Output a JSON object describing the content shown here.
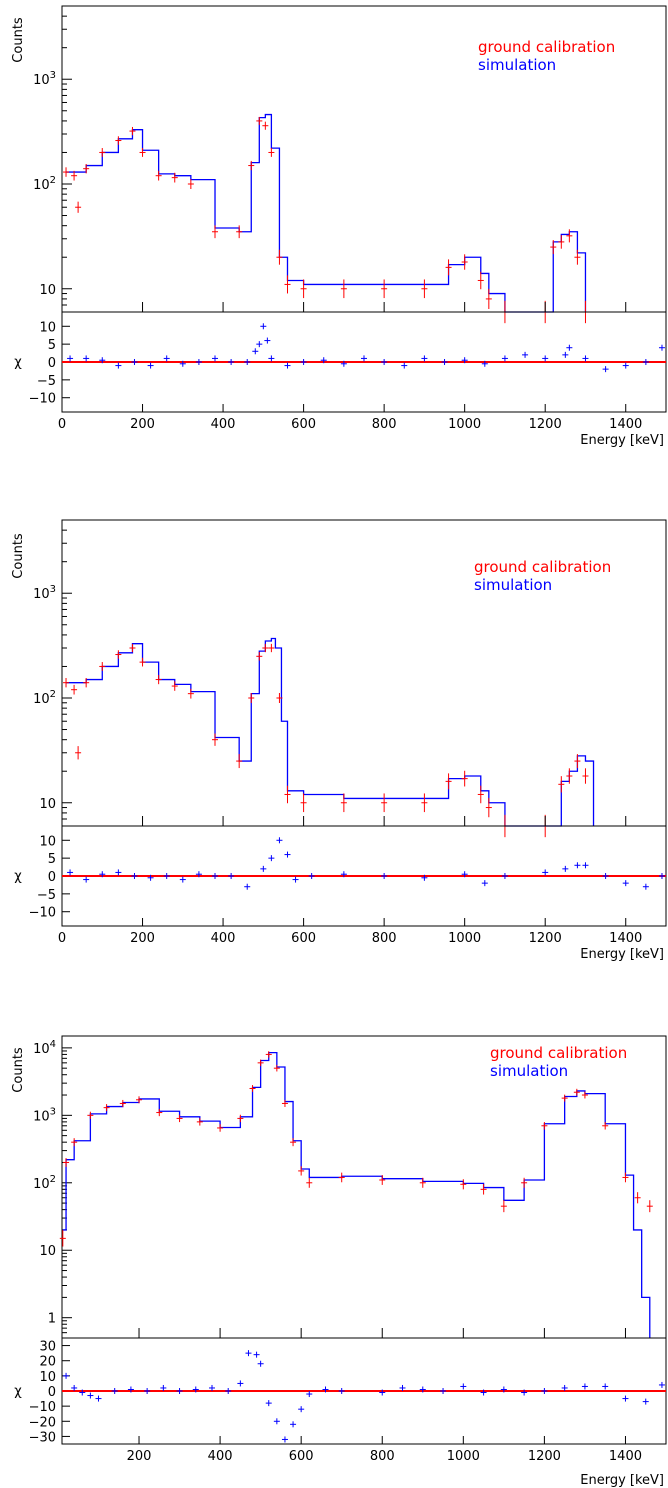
{
  "colors": {
    "data": "#ff0000",
    "sim": "#0000ff",
    "zero_line": "#ff0000",
    "axis": "#000000"
  },
  "chart_data": [
    {
      "type": "line",
      "legend": [
        "ground calibration",
        "simulation"
      ],
      "legend_placement": "top-right",
      "ylabel": "Counts",
      "xlabel": "Energy [keV]",
      "yscale": "log",
      "xlim": [
        0,
        1500
      ],
      "ylim": [
        6,
        5000
      ],
      "x_ticks": [
        "0",
        "200",
        "400",
        "600",
        "800",
        "1000",
        "1200",
        "1400"
      ],
      "y_ticks": [
        "10",
        "10^2",
        "10^3"
      ],
      "residual_ylabel": "χ",
      "residual_ylim": [
        -14,
        14
      ],
      "residual_ticks": [
        "10",
        "5",
        "0",
        "−5",
        "−10"
      ],
      "series": [
        {
          "name": "ground calibration",
          "x": [
            10,
            30,
            40,
            60,
            100,
            140,
            175,
            200,
            240,
            280,
            320,
            380,
            440,
            470,
            490,
            505,
            520,
            540,
            560,
            600,
            700,
            800,
            900,
            960,
            1000,
            1040,
            1060,
            1100,
            1200,
            1220,
            1240,
            1260,
            1280,
            1300
          ],
          "y": [
            130,
            120,
            60,
            140,
            200,
            260,
            320,
            200,
            120,
            115,
            100,
            35,
            35,
            150,
            400,
            360,
            200,
            20,
            11,
            10,
            10,
            10,
            10,
            16,
            18,
            12,
            8,
            6,
            6,
            25,
            28,
            32,
            20,
            6
          ]
        },
        {
          "name": "simulation",
          "x": [
            10,
            40,
            60,
            100,
            140,
            175,
            200,
            240,
            280,
            320,
            380,
            440,
            470,
            490,
            505,
            520,
            540,
            560,
            600,
            700,
            800,
            900,
            960,
            1000,
            1040,
            1060,
            1100,
            1200,
            1220,
            1240,
            1260,
            1280,
            1300
          ],
          "y": [
            130,
            130,
            150,
            200,
            270,
            330,
            210,
            125,
            120,
            110,
            38,
            35,
            160,
            430,
            460,
            220,
            20,
            12,
            11,
            11,
            11,
            11,
            17,
            20,
            14,
            9,
            6,
            6,
            28,
            33,
            35,
            22,
            6
          ]
        }
      ],
      "residuals": {
        "x": [
          20,
          60,
          100,
          140,
          180,
          220,
          260,
          300,
          340,
          380,
          420,
          460,
          480,
          490,
          500,
          510,
          520,
          560,
          600,
          650,
          700,
          750,
          800,
          850,
          900,
          950,
          1000,
          1050,
          1100,
          1150,
          1200,
          1250,
          1260,
          1300,
          1350,
          1400,
          1450,
          1490
        ],
        "y": [
          1,
          1,
          0.5,
          -1,
          0,
          -1,
          1,
          -0.5,
          0,
          1,
          0,
          0,
          3,
          5,
          10,
          6,
          1,
          -1,
          0,
          0.5,
          -0.5,
          1,
          0,
          -1,
          1,
          0,
          0.5,
          -0.5,
          1,
          2,
          1,
          2,
          4,
          1,
          -2,
          -1,
          0,
          4
        ]
      }
    },
    {
      "type": "line",
      "legend": [
        "ground calibration",
        "simulation"
      ],
      "legend_placement": "top-right",
      "ylabel": "Counts",
      "xlabel": "Energy [keV]",
      "yscale": "log",
      "xlim": [
        0,
        1500
      ],
      "ylim": [
        6,
        5000
      ],
      "x_ticks": [
        "0",
        "200",
        "400",
        "600",
        "800",
        "1000",
        "1200",
        "1400"
      ],
      "y_ticks": [
        "10",
        "10^2",
        "10^3"
      ],
      "residual_ylabel": "χ",
      "residual_ylim": [
        -14,
        14
      ],
      "residual_ticks": [
        "10",
        "5",
        "0",
        "−5",
        "−10"
      ],
      "series": [
        {
          "name": "ground calibration",
          "x": [
            10,
            30,
            40,
            60,
            100,
            140,
            175,
            200,
            240,
            280,
            320,
            380,
            440,
            470,
            490,
            505,
            520,
            540,
            560,
            600,
            700,
            800,
            900,
            960,
            1000,
            1040,
            1060,
            1100,
            1200,
            1240,
            1260,
            1280,
            1300
          ],
          "y": [
            140,
            120,
            30,
            140,
            200,
            260,
            300,
            220,
            150,
            130,
            110,
            40,
            25,
            100,
            250,
            300,
            300,
            100,
            12,
            10,
            10,
            10,
            10,
            16,
            17,
            12,
            9,
            6,
            6,
            15,
            18,
            25,
            18
          ]
        },
        {
          "name": "simulation",
          "x": [
            10,
            40,
            60,
            100,
            140,
            175,
            200,
            240,
            280,
            320,
            380,
            440,
            470,
            490,
            505,
            520,
            530,
            545,
            560,
            600,
            700,
            800,
            900,
            960,
            1000,
            1040,
            1060,
            1100,
            1200,
            1240,
            1260,
            1280,
            1300,
            1320
          ],
          "y": [
            140,
            140,
            150,
            200,
            270,
            330,
            220,
            150,
            135,
            115,
            42,
            25,
            110,
            280,
            350,
            370,
            300,
            60,
            13,
            12,
            11,
            11,
            11,
            17,
            18,
            13,
            10,
            6,
            6,
            16,
            20,
            28,
            25,
            6
          ]
        }
      ],
      "residuals": {
        "x": [
          20,
          60,
          100,
          140,
          180,
          220,
          260,
          300,
          340,
          380,
          420,
          460,
          500,
          520,
          540,
          560,
          580,
          620,
          700,
          800,
          900,
          1000,
          1050,
          1100,
          1200,
          1250,
          1280,
          1300,
          1350,
          1400,
          1450,
          1490
        ],
        "y": [
          1,
          -1,
          0.5,
          1,
          0,
          -0.5,
          0,
          -1,
          0.5,
          0,
          0,
          -3,
          2,
          5,
          10,
          6,
          -1,
          0,
          0.5,
          0,
          -0.5,
          0.5,
          -2,
          0,
          1,
          2,
          3,
          3,
          0,
          -2,
          -3,
          0
        ]
      }
    },
    {
      "type": "line",
      "legend": [
        "ground calibration",
        "simulation"
      ],
      "legend_placement": "top-right",
      "ylabel": "Counts",
      "xlabel": "Energy [keV]",
      "yscale": "log",
      "xlim": [
        10,
        1500
      ],
      "ylim": [
        0.5,
        15000
      ],
      "x_ticks": [
        "200",
        "400",
        "600",
        "800",
        "1000",
        "1200",
        "1400"
      ],
      "y_ticks": [
        "1",
        "10",
        "10^2",
        "10^3",
        "10^4"
      ],
      "residual_ylabel": "χ",
      "residual_ylim": [
        -35,
        35
      ],
      "residual_ticks": [
        "30",
        "20",
        "10",
        "0",
        "−10",
        "−20",
        "−30"
      ],
      "series": [
        {
          "name": "ground calibration",
          "x": [
            12,
            20,
            40,
            80,
            120,
            160,
            200,
            250,
            300,
            350,
            400,
            450,
            480,
            500,
            520,
            540,
            560,
            580,
            600,
            620,
            700,
            800,
            900,
            1000,
            1050,
            1100,
            1150,
            1200,
            1250,
            1280,
            1300,
            1350,
            1400,
            1430,
            1460
          ],
          "y": [
            15,
            200,
            400,
            1000,
            1300,
            1500,
            1700,
            1100,
            900,
            800,
            650,
            900,
            2500,
            6000,
            8000,
            5000,
            1500,
            400,
            150,
            100,
            120,
            110,
            100,
            95,
            80,
            45,
            100,
            700,
            1800,
            2200,
            2000,
            700,
            120,
            60,
            45
          ]
        },
        {
          "name": "simulation",
          "x": [
            12,
            20,
            40,
            80,
            120,
            160,
            200,
            250,
            300,
            350,
            400,
            450,
            480,
            500,
            520,
            540,
            560,
            580,
            600,
            620,
            700,
            800,
            900,
            1000,
            1050,
            1100,
            1150,
            1200,
            1250,
            1280,
            1300,
            1350,
            1400,
            1420,
            1440,
            1460
          ],
          "y": [
            20,
            220,
            420,
            1050,
            1350,
            1550,
            1750,
            1150,
            950,
            820,
            660,
            950,
            2600,
            6500,
            8500,
            5200,
            1600,
            420,
            160,
            120,
            125,
            115,
            105,
            98,
            85,
            55,
            110,
            750,
            1900,
            2300,
            2100,
            750,
            130,
            20,
            2,
            0.5
          ]
        }
      ],
      "residuals": {
        "x": [
          20,
          40,
          60,
          80,
          100,
          140,
          180,
          220,
          260,
          300,
          340,
          380,
          420,
          450,
          470,
          490,
          500,
          520,
          540,
          560,
          580,
          600,
          620,
          660,
          700,
          800,
          850,
          900,
          950,
          1000,
          1050,
          1100,
          1150,
          1200,
          1250,
          1300,
          1350,
          1400,
          1450,
          1490
        ],
        "y": [
          10,
          2,
          -1,
          -3,
          -5,
          0,
          1,
          0,
          2,
          0,
          1,
          2,
          0,
          5,
          25,
          24,
          18,
          -8,
          -20,
          -32,
          -22,
          -12,
          -2,
          1,
          0,
          -1,
          2,
          1,
          0,
          3,
          -1,
          1,
          -1,
          0,
          2,
          3,
          3,
          -5,
          -7,
          4
        ]
      }
    }
  ]
}
